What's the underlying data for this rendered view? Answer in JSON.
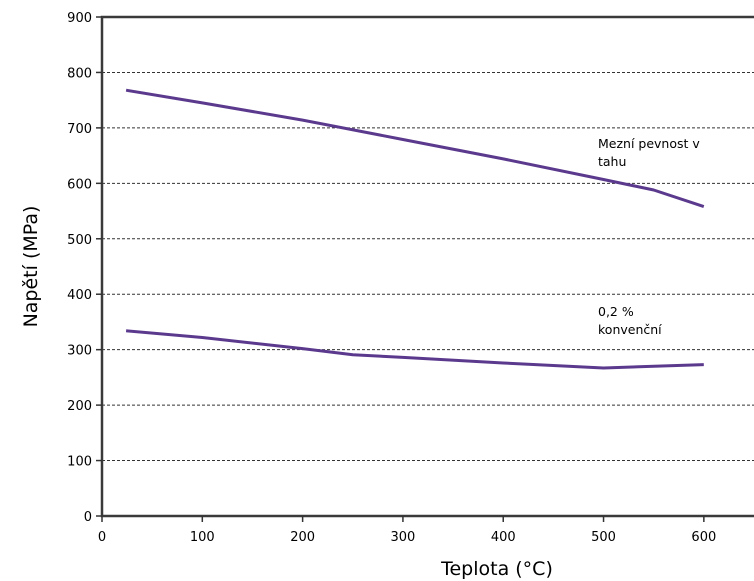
{
  "chart_data": {
    "type": "line",
    "title": "",
    "xlabel": "Teplota (°C)",
    "ylabel": "Napětí (MPa)",
    "xlim": [
      0,
      650
    ],
    "ylim": [
      0,
      900
    ],
    "xticks": [
      0,
      100,
      200,
      300,
      400,
      500,
      600
    ],
    "yticks": [
      0,
      100,
      200,
      300,
      400,
      500,
      600,
      700,
      800,
      900
    ],
    "grid": "horizontal dashed",
    "legend": "none",
    "series": [
      {
        "color": "#5b3a8e",
        "annotation": [
          "Mezní pevnost v",
          "tahu"
        ],
        "points": [
          {
            "x": 24,
            "y": 768
          },
          {
            "x": 100,
            "y": 745
          },
          {
            "x": 200,
            "y": 714
          },
          {
            "x": 300,
            "y": 679
          },
          {
            "x": 400,
            "y": 644
          },
          {
            "x": 500,
            "y": 607
          },
          {
            "x": 550,
            "y": 588
          },
          {
            "x": 600,
            "y": 558
          }
        ]
      },
      {
        "color": "#5b3a8e",
        "annotation": [
          "0,2 %",
          "konvenční"
        ],
        "points": [
          {
            "x": 24,
            "y": 334
          },
          {
            "x": 100,
            "y": 322
          },
          {
            "x": 200,
            "y": 302
          },
          {
            "x": 250,
            "y": 291
          },
          {
            "x": 300,
            "y": 286
          },
          {
            "x": 400,
            "y": 276
          },
          {
            "x": 500,
            "y": 267
          },
          {
            "x": 600,
            "y": 273
          }
        ]
      }
    ]
  }
}
